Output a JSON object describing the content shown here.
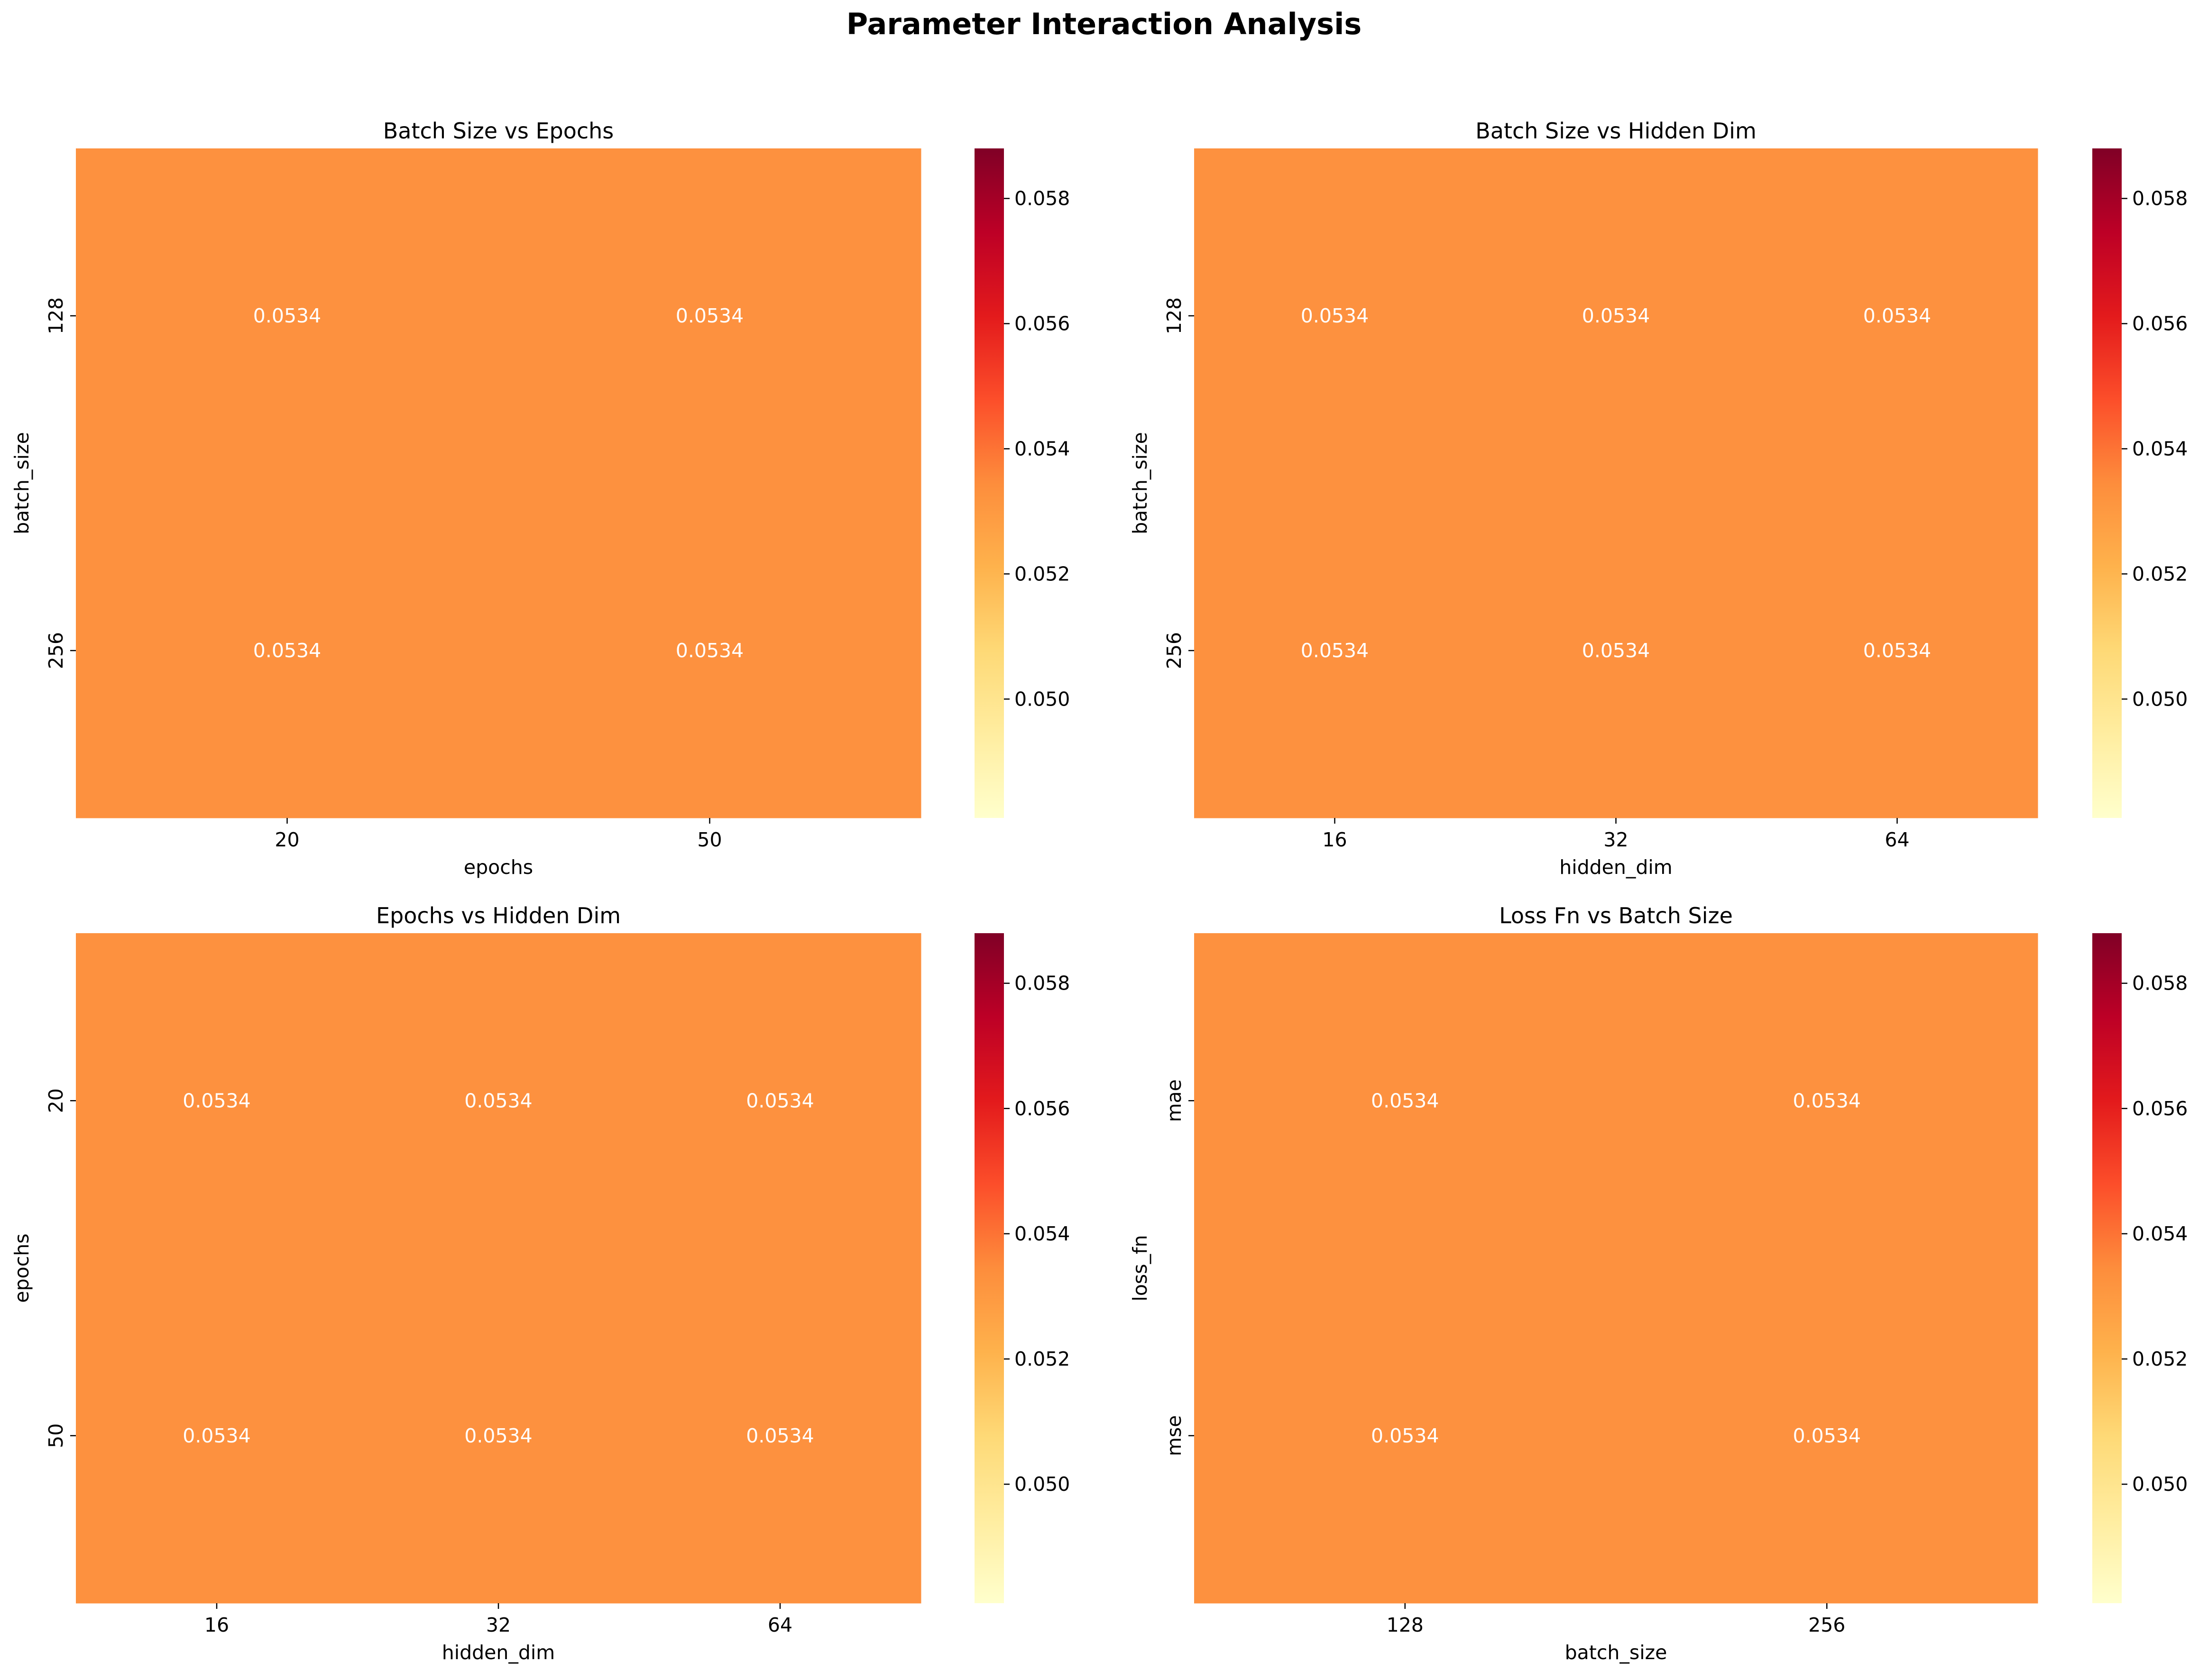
{
  "figure": {
    "title": "Parameter Interaction Analysis"
  },
  "colormap": {
    "name": "YlOrRd",
    "stops": [
      "#ffffcc",
      "#ffeda0",
      "#fed976",
      "#feb24c",
      "#fd8d3c",
      "#fc4e2a",
      "#e31a1c",
      "#bd0026",
      "#800026"
    ]
  },
  "chart_data": [
    {
      "type": "heatmap",
      "title": "Batch Size vs Epochs",
      "xlabel": "epochs",
      "ylabel": "batch_size",
      "x_categories": [
        "20",
        "50"
      ],
      "y_categories": [
        "128",
        "256"
      ],
      "values": [
        [
          0.0534,
          0.0534
        ],
        [
          0.0534,
          0.0534
        ]
      ],
      "value_format": "0.0534",
      "color_range": [
        0.0481,
        0.0588
      ],
      "colorbar_ticks": [
        0.05,
        0.052,
        0.054,
        0.056,
        0.058
      ],
      "colorbar_tick_labels": [
        "0.050",
        "0.052",
        "0.054",
        "0.056",
        "0.058"
      ],
      "cell_color": "#fd913f",
      "annotation_color": "#ffffff"
    },
    {
      "type": "heatmap",
      "title": "Batch Size vs Hidden Dim",
      "xlabel": "hidden_dim",
      "ylabel": "batch_size",
      "x_categories": [
        "16",
        "32",
        "64"
      ],
      "y_categories": [
        "128",
        "256"
      ],
      "values": [
        [
          0.0534,
          0.0534,
          0.0534
        ],
        [
          0.0534,
          0.0534,
          0.0534
        ]
      ],
      "value_format": "0.0534",
      "color_range": [
        0.0481,
        0.0588
      ],
      "colorbar_ticks": [
        0.05,
        0.052,
        0.054,
        0.056,
        0.058
      ],
      "colorbar_tick_labels": [
        "0.050",
        "0.052",
        "0.054",
        "0.056",
        "0.058"
      ],
      "cell_color": "#fd913f",
      "annotation_color": "#ffffff"
    },
    {
      "type": "heatmap",
      "title": "Epochs vs Hidden Dim",
      "xlabel": "hidden_dim",
      "ylabel": "epochs",
      "x_categories": [
        "16",
        "32",
        "64"
      ],
      "y_categories": [
        "20",
        "50"
      ],
      "values": [
        [
          0.0534,
          0.0534,
          0.0534
        ],
        [
          0.0534,
          0.0534,
          0.0534
        ]
      ],
      "value_format": "0.0534",
      "color_range": [
        0.0481,
        0.0588
      ],
      "colorbar_ticks": [
        0.05,
        0.052,
        0.054,
        0.056,
        0.058
      ],
      "colorbar_tick_labels": [
        "0.050",
        "0.052",
        "0.054",
        "0.056",
        "0.058"
      ],
      "cell_color": "#fd913f",
      "annotation_color": "#ffffff"
    },
    {
      "type": "heatmap",
      "title": "Loss Fn vs Batch Size",
      "xlabel": "batch_size",
      "ylabel": "loss_fn",
      "x_categories": [
        "128",
        "256"
      ],
      "y_categories": [
        "mae",
        "mse"
      ],
      "values": [
        [
          0.0534,
          0.0534
        ],
        [
          0.0534,
          0.0534
        ]
      ],
      "value_format": "0.0534",
      "color_range": [
        0.0481,
        0.0588
      ],
      "colorbar_ticks": [
        0.05,
        0.052,
        0.054,
        0.056,
        0.058
      ],
      "colorbar_tick_labels": [
        "0.050",
        "0.052",
        "0.054",
        "0.056",
        "0.058"
      ],
      "cell_color": "#fd913f",
      "annotation_color": "#ffffff"
    }
  ]
}
